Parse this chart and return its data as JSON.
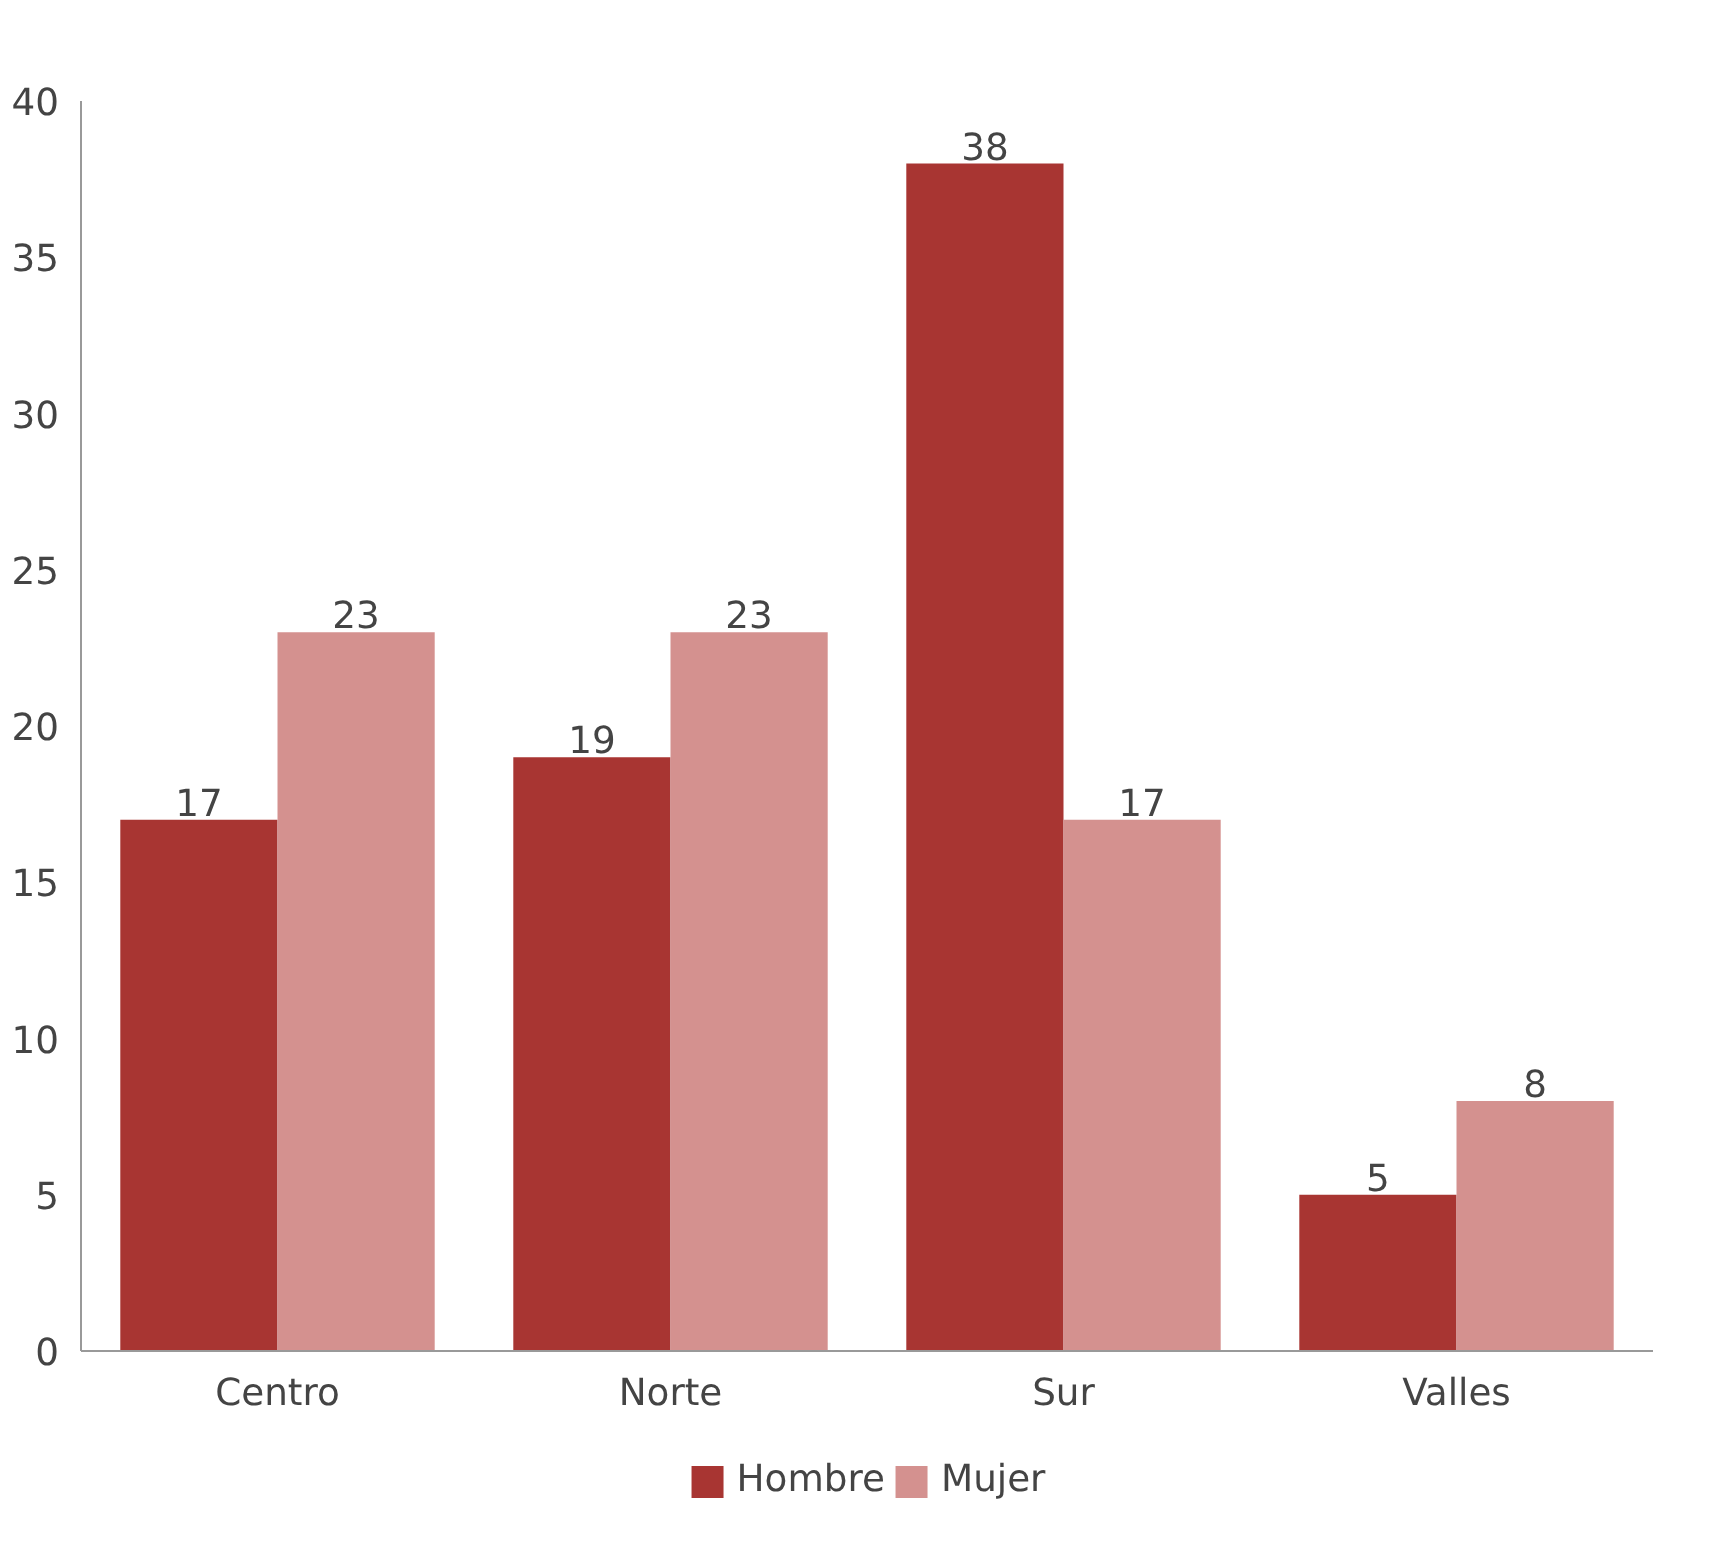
{
  "chart_data": {
    "type": "bar",
    "categories": [
      "Centro",
      "Norte",
      "Sur",
      "Valles"
    ],
    "series": [
      {
        "name": "Hombre",
        "color": "#a83532",
        "values": [
          17,
          19,
          38,
          5
        ]
      },
      {
        "name": "Mujer",
        "color": "#d4918f",
        "values": [
          23,
          23,
          17,
          8
        ]
      }
    ],
    "ylim": [
      0,
      40
    ],
    "yticks": [
      0,
      5,
      10,
      15,
      20,
      25,
      30,
      35,
      40
    ],
    "grid": false,
    "legend": "bottom",
    "data_labels": true
  }
}
